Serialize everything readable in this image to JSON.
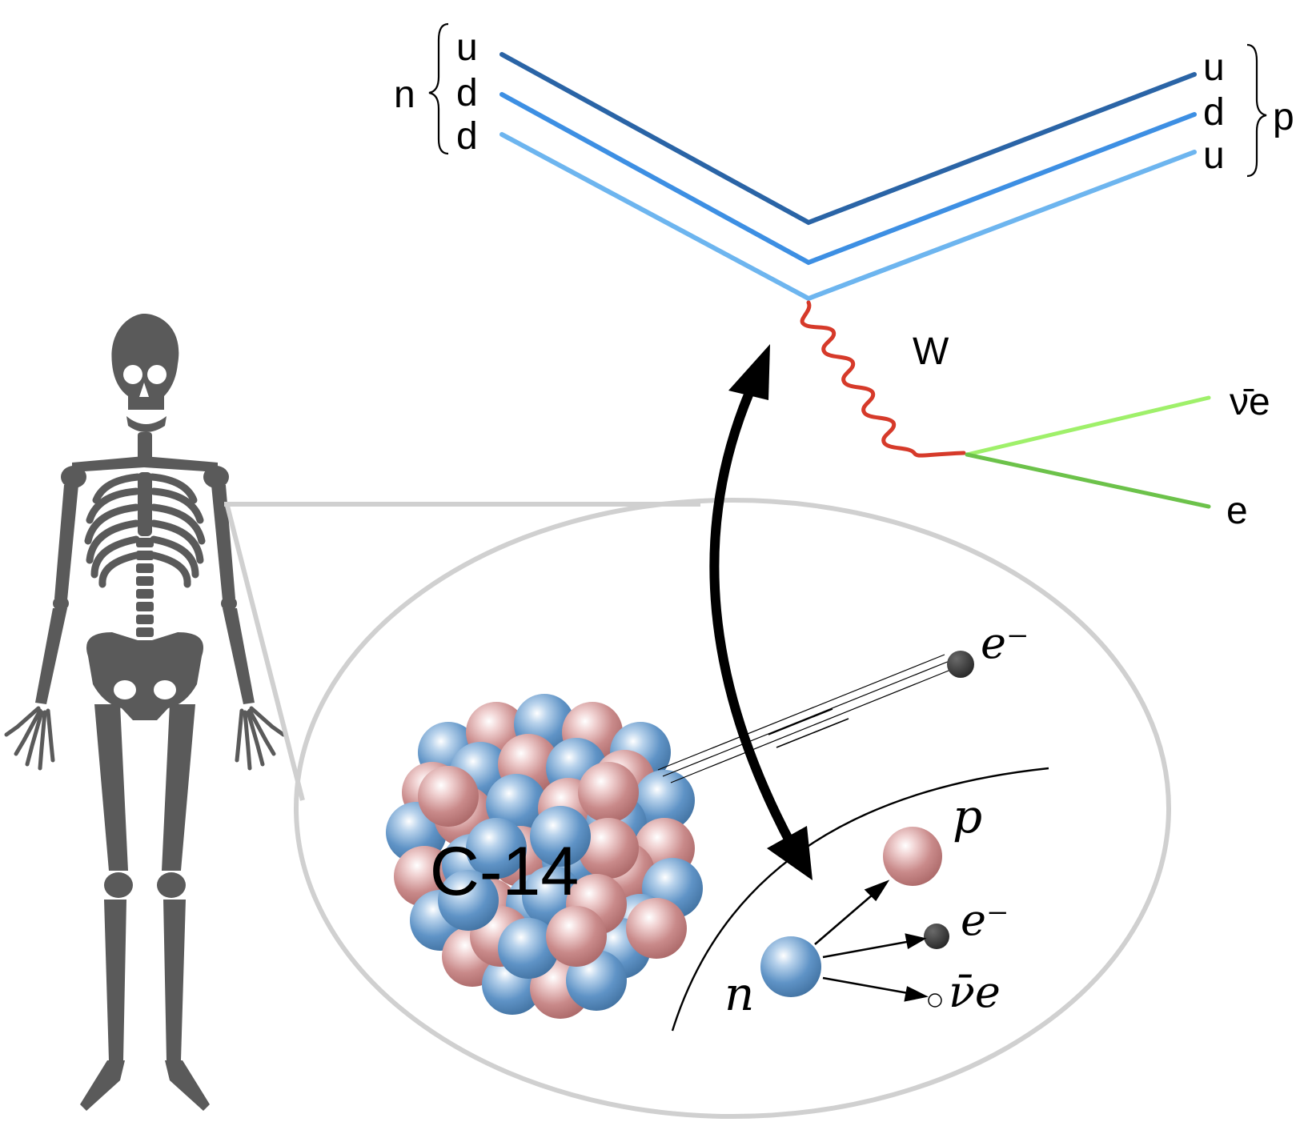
{
  "feynman": {
    "neutron_label": "n",
    "proton_label": "p",
    "neutron_quarks": [
      "u",
      "d",
      "d"
    ],
    "proton_quarks": [
      "u",
      "d",
      "u"
    ],
    "boson_label": "W",
    "antineutrino_label": "ν̄e",
    "electron_label": "e",
    "quark_colors": [
      "#2a64a6",
      "#3d8fe3",
      "#6db5ef"
    ],
    "boson_color": "#d63a2a",
    "lepton_colors": [
      "#9ff06a",
      "#6cc24a"
    ]
  },
  "nucleus": {
    "label": "C-14",
    "proton_color": "#c98a8a",
    "neutron_color": "#5f93c6"
  },
  "decay": {
    "neutron_label": "n",
    "proton_label": "p",
    "electron_label": "e⁻",
    "antineutrino_label": "ν̄e",
    "emitted_electron_label": "e⁻"
  },
  "colors": {
    "skeleton": "#5a5a5a",
    "magnifier": "#d0d0d0",
    "arrow": "#000000"
  }
}
